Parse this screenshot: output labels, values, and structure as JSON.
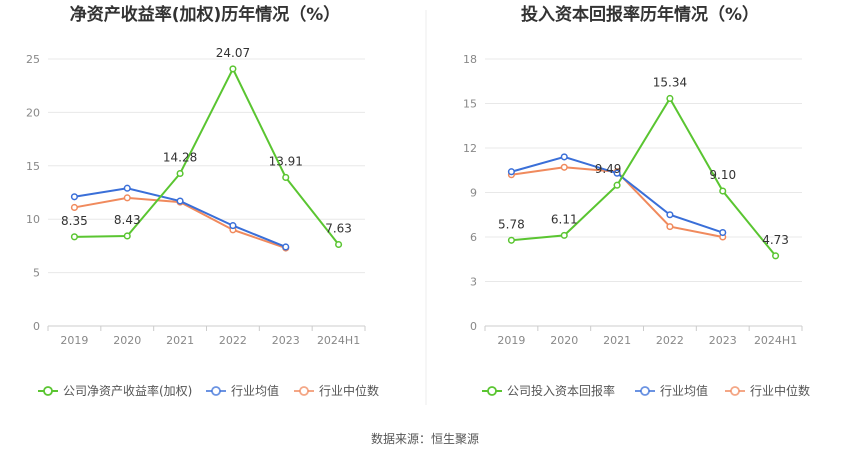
{
  "source": "数据来源：恒生聚源",
  "chart_data": [
    {
      "type": "line",
      "title": "净资产收益率(加权)历年情况（%）",
      "categories": [
        "2019",
        "2020",
        "2021",
        "2022",
        "2023",
        "2024H1"
      ],
      "ylim": [
        0,
        25
      ],
      "yticks": [
        0,
        5,
        10,
        15,
        20,
        25
      ],
      "grid": true,
      "legend_position": "bottom",
      "series": [
        {
          "name": "公司净资产收益率(加权)",
          "color": "#5ac531",
          "values": [
            8.35,
            8.43,
            14.28,
            24.07,
            13.91,
            7.63
          ],
          "labels": [
            "8.35",
            "8.43",
            "14.28",
            "24.07",
            "13.91",
            "7.63"
          ]
        },
        {
          "name": "行业均值",
          "color": "#3a6fd8",
          "values": [
            12.1,
            12.9,
            11.7,
            9.4,
            7.4,
            null
          ]
        },
        {
          "name": "行业中位数",
          "color": "#f08a5d",
          "values": [
            11.1,
            12.0,
            11.6,
            9.0,
            7.3,
            null
          ]
        }
      ]
    },
    {
      "type": "line",
      "title": "投入资本回报率历年情况（%）",
      "categories": [
        "2019",
        "2020",
        "2021",
        "2022",
        "2023",
        "2024H1"
      ],
      "ylim": [
        0,
        18
      ],
      "yticks": [
        0,
        3,
        6,
        9,
        12,
        15,
        18
      ],
      "grid": true,
      "legend_position": "bottom",
      "series": [
        {
          "name": "公司投入资本回报率",
          "color": "#5ac531",
          "values": [
            5.78,
            6.11,
            9.49,
            15.34,
            9.1,
            4.73
          ],
          "labels": [
            "5.78",
            "6.11",
            "9.49",
            "15.34",
            "9.10",
            "4.73"
          ]
        },
        {
          "name": "行业均值",
          "color": "#3a6fd8",
          "values": [
            10.4,
            11.4,
            10.3,
            7.5,
            6.3,
            null
          ]
        },
        {
          "name": "行业中位数",
          "color": "#f08a5d",
          "values": [
            10.2,
            10.7,
            10.4,
            6.7,
            6.0,
            null
          ]
        }
      ]
    }
  ]
}
